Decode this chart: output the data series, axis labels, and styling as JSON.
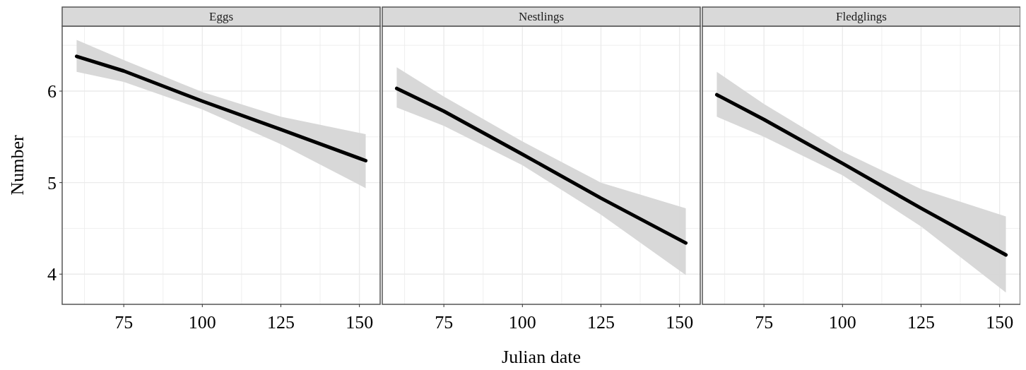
{
  "chart_data": [
    {
      "type": "line",
      "title": "Eggs",
      "ylabel": "Number",
      "x": [
        60,
        75,
        100,
        125,
        152
      ],
      "xlim": [
        55.4,
        156.6
      ],
      "xticks": [
        {
          "value": 62.5,
          "label": null
        },
        75,
        {
          "value": 87.5,
          "label": null
        },
        100,
        {
          "value": 112.5,
          "label": null
        },
        125,
        {
          "value": 137.5,
          "label": null
        },
        150
      ],
      "ylim": [
        3.67,
        6.71
      ],
      "yticks": [
        4,
        {
          "value": 4.5,
          "label": null
        },
        5,
        {
          "value": 5.5,
          "label": null
        },
        6,
        {
          "value": 6.5,
          "label": null
        }
      ],
      "grid": true,
      "series": [
        {
          "color": "#000000",
          "values": [
            6.38,
            6.22,
            5.89,
            5.58,
            5.24
          ],
          "lower": [
            6.21,
            6.1,
            5.8,
            5.42,
            4.94
          ],
          "upper": [
            6.56,
            6.34,
            5.99,
            5.72,
            5.53
          ]
        }
      ]
    },
    {
      "type": "line",
      "title": "Nestlings",
      "xlabel": "Julian date",
      "x": [
        60,
        75,
        100,
        125,
        152
      ],
      "xlim": [
        55.4,
        156.6
      ],
      "xticks": [
        {
          "value": 62.5,
          "label": null
        },
        75,
        {
          "value": 87.5,
          "label": null
        },
        100,
        {
          "value": 112.5,
          "label": null
        },
        125,
        {
          "value": 137.5,
          "label": null
        },
        150
      ],
      "ylim": [
        3.67,
        6.71
      ],
      "yticks": [
        4,
        {
          "value": 4.5,
          "label": null
        },
        5,
        {
          "value": 5.5,
          "label": null
        },
        6,
        {
          "value": 6.5,
          "label": null
        }
      ],
      "grid": true,
      "tick_labels": "x",
      "series": [
        {
          "color": "#000000",
          "values": [
            6.03,
            5.78,
            5.31,
            4.83,
            4.34
          ],
          "lower": [
            5.82,
            5.62,
            5.19,
            4.65,
            3.99
          ],
          "upper": [
            6.26,
            5.94,
            5.45,
            5.0,
            4.72
          ]
        }
      ]
    },
    {
      "type": "line",
      "title": "Fledglings",
      "x": [
        60,
        75,
        100,
        125,
        152
      ],
      "xlim": [
        55.4,
        156.6
      ],
      "xticks": [
        {
          "value": 62.5,
          "label": null
        },
        75,
        {
          "value": 87.5,
          "label": null
        },
        100,
        {
          "value": 112.5,
          "label": null
        },
        125,
        {
          "value": 137.5,
          "label": null
        },
        150
      ],
      "ylim": [
        3.67,
        6.71
      ],
      "yticks": [
        4,
        {
          "value": 4.5,
          "label": null
        },
        5,
        {
          "value": 5.5,
          "label": null
        },
        6,
        {
          "value": 6.5,
          "label": null
        }
      ],
      "grid": true,
      "tick_labels": "x",
      "series": [
        {
          "color": "#000000",
          "values": [
            5.96,
            5.69,
            5.21,
            4.72,
            4.21
          ],
          "lower": [
            5.72,
            5.5,
            5.08,
            4.52,
            3.8
          ],
          "upper": [
            6.21,
            5.86,
            5.34,
            4.93,
            4.63
          ]
        }
      ]
    }
  ]
}
